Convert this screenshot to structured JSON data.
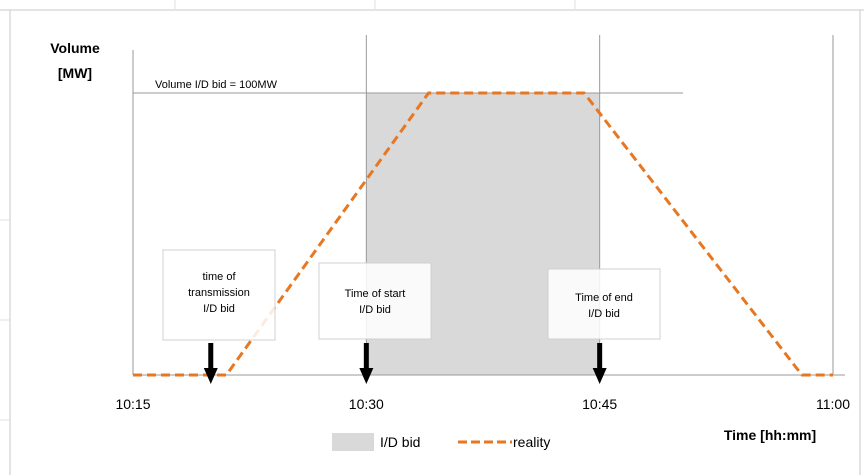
{
  "chart_data": {
    "type": "line",
    "title": "",
    "ylabel_line1": "Volume",
    "ylabel_line2": "[MW]",
    "xlabel": "Time [hh:mm]",
    "x_ticks": [
      "10:15",
      "10:30",
      "10:45",
      "11:00"
    ],
    "volume_label": "Volume I/D bid = 100MW",
    "bid_window": {
      "start": "10:30",
      "end": "10:45",
      "volume_mw": 100
    },
    "series": [
      {
        "name": "reality",
        "color": "#E87722",
        "points": [
          [
            "10:15",
            0
          ],
          [
            "10:21",
            0
          ],
          [
            "10:34",
            100
          ],
          [
            "10:44",
            100
          ],
          [
            "10:58",
            0
          ],
          [
            "11:00",
            0
          ]
        ]
      }
    ],
    "legend": {
      "position": "bottom",
      "bid_label": "I/D bid",
      "reality_label": "reality",
      "bid_color": "#D9D9D9"
    },
    "annotations": [
      {
        "id": "transmission",
        "lines": [
          "time of",
          "transmission",
          "I/D bid"
        ],
        "time": "10:20"
      },
      {
        "id": "start",
        "lines": [
          "Time of start",
          "I/D bid"
        ],
        "time": "10:30"
      },
      {
        "id": "end",
        "lines": [
          "Time of end",
          "I/D bid"
        ],
        "time": "10:45"
      }
    ]
  }
}
